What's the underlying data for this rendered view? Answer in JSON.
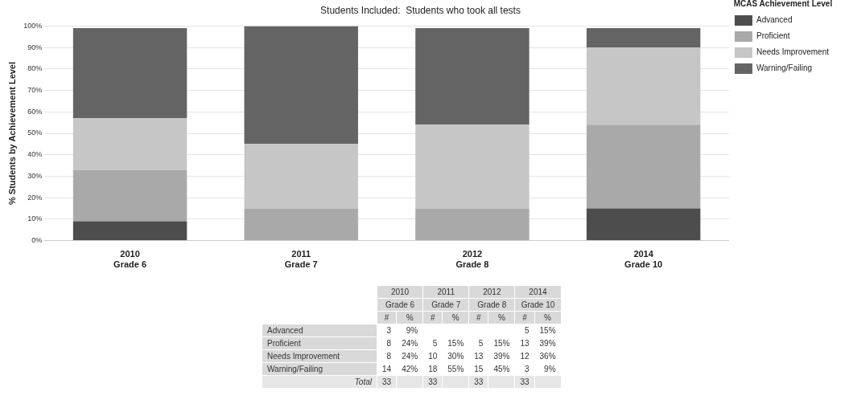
{
  "chart_data": {
    "type": "bar",
    "title": "Students Included:  Students who took all tests",
    "ylabel": "% Students by Achievement Level",
    "legend_title": "MCAS Achievement Level",
    "categories": [
      "2010\nGrade 6",
      "2011\nGrade 7",
      "2012\nGrade 8",
      "2014\nGrade 10"
    ],
    "stacked": true,
    "series": [
      {
        "name": "Advanced",
        "color": "#4d4d4d",
        "values": [
          9,
          null,
          null,
          15
        ]
      },
      {
        "name": "Proficient",
        "color": "#a9a9a9",
        "values": [
          24,
          15,
          15,
          39
        ]
      },
      {
        "name": "Needs Improvement",
        "color": "#c6c6c6",
        "values": [
          24,
          30,
          39,
          36
        ]
      },
      {
        "name": "Warning/Failing",
        "color": "#646464",
        "values": [
          42,
          55,
          45,
          9
        ]
      }
    ],
    "ylim": [
      0,
      100
    ],
    "yticks": [
      {
        "value": 0,
        "label": "0%"
      },
      {
        "value": 10,
        "label": "10%"
      },
      {
        "value": 20,
        "label": "20%"
      },
      {
        "value": 30,
        "label": "30%"
      },
      {
        "value": 40,
        "label": "40%"
      },
      {
        "value": 50,
        "label": "50%"
      },
      {
        "value": 60,
        "label": "60%"
      },
      {
        "value": 70,
        "label": "70%"
      },
      {
        "value": 80,
        "label": "80%"
      },
      {
        "value": 90,
        "label": "90%"
      },
      {
        "value": 100,
        "label": "100%"
      }
    ],
    "grid": "y",
    "legend": "top right",
    "annotations": [
      "#",
      "%",
      "Total",
      "3",
      "9%",
      "8",
      "24%",
      "8",
      "24%",
      "14",
      "42%",
      "33",
      "5",
      "15%",
      "10",
      "30%",
      "18",
      "55%",
      "33",
      "5",
      "15%",
      "13",
      "39%",
      "15",
      "45%",
      "33",
      "5",
      "15%",
      "13",
      "39%",
      "12",
      "36%",
      "3",
      "9%",
      "33"
    ]
  }
}
